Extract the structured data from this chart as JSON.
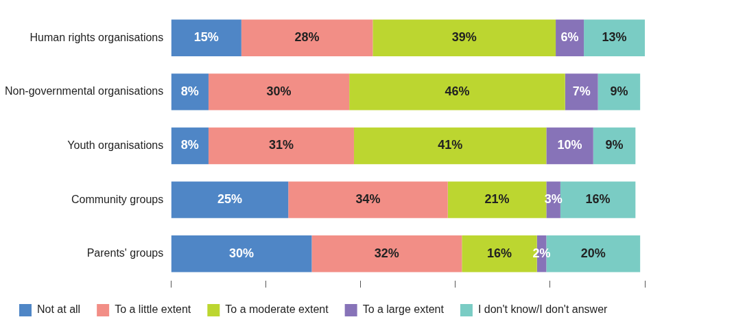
{
  "chart_data": {
    "type": "bar",
    "orientation": "horizontal",
    "stacked": true,
    "legend": "bottom",
    "grid": false,
    "tick_labels": "y",
    "categories": [
      "Human rights organisations",
      "Non-governmental organisations",
      "Youth organisations",
      "Community groups",
      "Parents' groups"
    ],
    "series": [
      {
        "name": "Not at all",
        "color": "#4f86c6",
        "values": [
          15,
          8,
          8,
          25,
          30
        ],
        "value_labels": [
          "15%",
          "8%",
          "8%",
          "25%",
          "30%"
        ]
      },
      {
        "name": "To a little extent",
        "color": "#f28e86",
        "values": [
          28,
          30,
          31,
          34,
          32
        ],
        "value_labels": [
          "28%",
          "30%",
          "31%",
          "34%",
          "32%"
        ]
      },
      {
        "name": "To a moderate extent",
        "color": "#bcd630",
        "values": [
          39,
          46,
          41,
          21,
          16
        ],
        "value_labels": [
          "39%",
          "46%",
          "41%",
          "21%",
          "16%"
        ]
      },
      {
        "name": "To a large extent",
        "color": "#8773b8",
        "values": [
          6,
          7,
          10,
          3,
          2
        ],
        "value_labels": [
          "6%",
          "7%",
          "10%",
          "3%",
          "2%"
        ]
      },
      {
        "name": "I don't know/I don't answer",
        "color": "#7accc4",
        "values": [
          13,
          9,
          9,
          16,
          20
        ],
        "value_labels": [
          "13%",
          "9%",
          "9%",
          "16%",
          "20%"
        ]
      }
    ]
  }
}
